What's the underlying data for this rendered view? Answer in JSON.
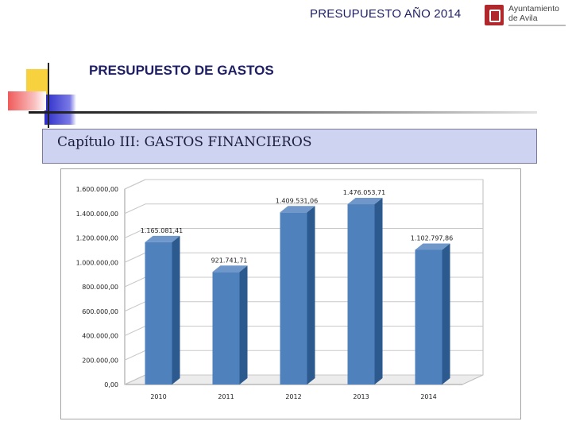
{
  "header": {
    "title": "PRESUPUESTO AÑO 2014",
    "logo_text": "Ayuntamiento de Avila"
  },
  "section": {
    "title": "PRESUPUESTO DE GASTOS"
  },
  "chapter": {
    "title": "Capítulo III: GASTOS FINANCIEROS"
  },
  "colors": {
    "bar": "#4f81bd",
    "bar_top": "#6f97c9",
    "bar_side": "#2d5a8e",
    "title_text": "#1f1f66",
    "chapter_box": "#cfd3f2"
  },
  "chart_data": {
    "type": "bar",
    "categories": [
      "2010",
      "2011",
      "2012",
      "2013",
      "2014"
    ],
    "values": [
      1165081.41,
      921741.71,
      1409531.06,
      1476053.71,
      1102797.86
    ],
    "value_labels": [
      "1.165.081,41",
      "921.741,71",
      "1.409.531,06",
      "1.476.053,71",
      "1.102.797,86"
    ],
    "ylim": [
      0,
      1600000
    ],
    "yticks": [
      0,
      200000,
      400000,
      600000,
      800000,
      1000000,
      1200000,
      1400000,
      1600000
    ],
    "ytick_labels": [
      "0,00",
      "200.000,00",
      "400.000,00",
      "600.000,00",
      "800.000,00",
      "1.000.000,00",
      "1.200.000,00",
      "1.400.000,00",
      "1.600.000,00"
    ],
    "title": "",
    "xlabel": "",
    "ylabel": "",
    "grid": true,
    "style": "3d"
  }
}
